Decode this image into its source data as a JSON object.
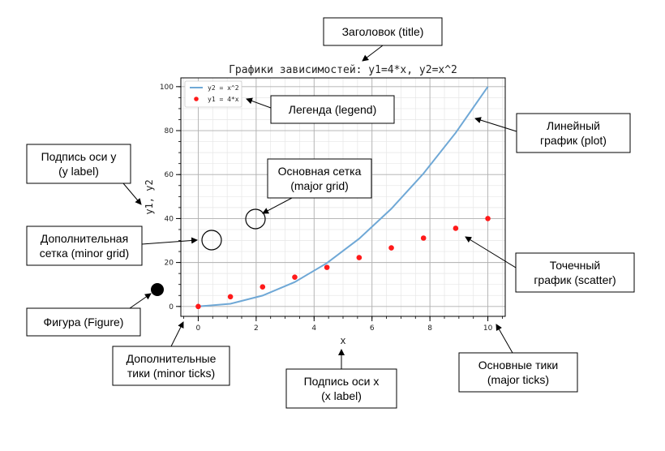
{
  "chart_data": {
    "type": "line",
    "title": "Графики зависимостей: y1=4*x, y2=x^2",
    "xlabel": "x",
    "ylabel": "y1, y2",
    "xlim": [
      -0.6,
      10.6
    ],
    "ylim": [
      -4.5,
      104
    ],
    "x_ticks": [
      0,
      2,
      4,
      6,
      8,
      10
    ],
    "y_ticks": [
      0,
      20,
      40,
      60,
      80,
      100
    ],
    "grid": true,
    "minor_grid": true,
    "legend_position": "top-left",
    "series": [
      {
        "name": "y2 = x^2",
        "type": "line",
        "color": "#6fa8d6",
        "x": [
          0,
          1.111,
          2.222,
          3.333,
          4.444,
          5.556,
          6.667,
          7.778,
          8.889,
          10
        ],
        "y": [
          0,
          1.23,
          4.94,
          11.11,
          19.75,
          30.86,
          44.44,
          60.49,
          79.01,
          100
        ]
      },
      {
        "name": "y1 = 4*x",
        "type": "scatter",
        "color": "#ff1a1a",
        "x": [
          0,
          1.111,
          2.222,
          3.333,
          4.444,
          5.556,
          6.667,
          7.778,
          8.889,
          10
        ],
        "y": [
          0,
          4.44,
          8.89,
          13.33,
          17.78,
          22.22,
          26.67,
          31.11,
          35.56,
          40
        ]
      }
    ]
  },
  "callouts": {
    "title": [
      "Заголовок (title)"
    ],
    "legend": [
      "Легенда (legend)"
    ],
    "plot": [
      "Линейный",
      "график (plot)"
    ],
    "ylabel": [
      "Подпись оси y",
      "(y label)"
    ],
    "major_grid": [
      "Основная сетка",
      "(major grid)"
    ],
    "minor_grid": [
      "Дополнительная",
      "сетка (minor grid)"
    ],
    "scatter": [
      "Точечный",
      "график (scatter)"
    ],
    "figure": [
      "Фигура (Figure)"
    ],
    "minor_ticks": [
      "Дополнительные",
      "тики (minor ticks)"
    ],
    "xlabel": [
      "Подпись оси x",
      "(x label)"
    ],
    "major_ticks": [
      "Основные тики",
      "(major ticks)"
    ]
  }
}
